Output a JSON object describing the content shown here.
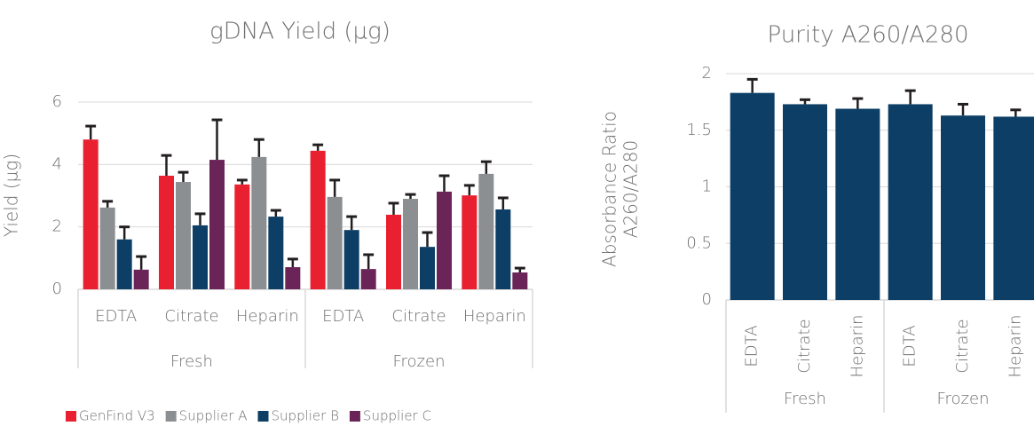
{
  "chart_data": [
    {
      "type": "bar",
      "title": "gDNA Yield (µg)",
      "y_label": "Yield (µg)",
      "categories": [
        "EDTA",
        "Citrate",
        "Heparin",
        "EDTA",
        "Citrate",
        "Heparin"
      ],
      "category_groups": [
        "Fresh",
        "Frozen"
      ],
      "ylim": [
        0,
        6
      ],
      "yticks": [
        0,
        2,
        4,
        6
      ],
      "grid": true,
      "series": [
        {
          "name": "GenFind V3",
          "color": "#e8202f",
          "values": [
            4.8,
            3.64,
            3.36,
            4.44,
            2.39,
            3.01
          ],
          "errors": [
            0.43,
            0.65,
            0.14,
            0.19,
            0.37,
            0.32
          ]
        },
        {
          "name": "Supplier A",
          "color": "#8c8f92",
          "values": [
            2.62,
            3.44,
            4.24,
            2.96,
            2.9,
            3.7
          ],
          "errors": [
            0.2,
            0.31,
            0.56,
            0.54,
            0.14,
            0.39
          ]
        },
        {
          "name": "Supplier B",
          "color": "#0d3f66",
          "values": [
            1.6,
            2.05,
            2.33,
            1.9,
            1.36,
            2.56
          ],
          "errors": [
            0.4,
            0.37,
            0.2,
            0.43,
            0.46,
            0.37
          ]
        },
        {
          "name": "Supplier C",
          "color": "#6b2458",
          "values": [
            0.63,
            4.15,
            0.71,
            0.65,
            3.13,
            0.54
          ],
          "errors": [
            0.42,
            1.28,
            0.26,
            0.46,
            0.51,
            0.14
          ]
        }
      ]
    },
    {
      "type": "bar",
      "title": "Purity A260/A280",
      "y_label": [
        "Absorbance Ratio",
        "A260/A280"
      ],
      "categories": [
        "EDTA",
        "Citrate",
        "Heparin",
        "EDTA",
        "Citrate",
        "Heparin"
      ],
      "category_groups": [
        "Fresh",
        "Frozen"
      ],
      "ylim": [
        0,
        2
      ],
      "yticks": [
        0,
        0.5,
        1,
        1.5,
        2
      ],
      "grid": true,
      "series": [
        {
          "color": "#0d3f66",
          "values": [
            1.83,
            1.73,
            1.69,
            1.73,
            1.63,
            1.62
          ],
          "errors": [
            0.12,
            0.04,
            0.09,
            0.12,
            0.1,
            0.06
          ]
        }
      ]
    }
  ]
}
